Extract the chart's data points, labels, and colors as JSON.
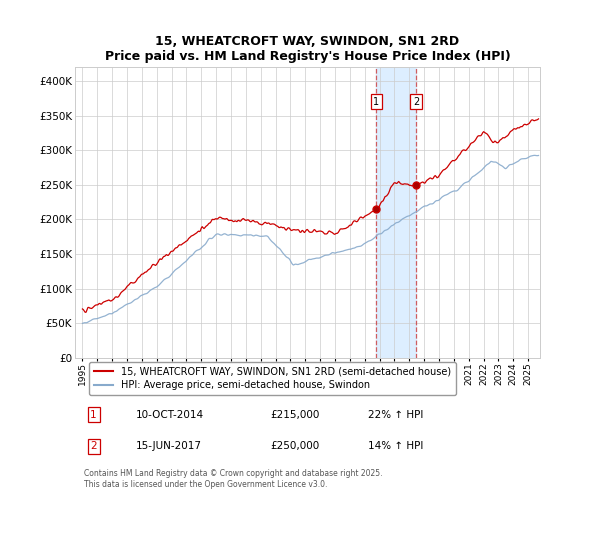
{
  "title": "15, WHEATCROFT WAY, SWINDON, SN1 2RD",
  "subtitle": "Price paid vs. HM Land Registry's House Price Index (HPI)",
  "ytick_values": [
    0,
    50000,
    100000,
    150000,
    200000,
    250000,
    300000,
    350000,
    400000
  ],
  "ylim": [
    0,
    420000
  ],
  "purchase1_date": "10-OCT-2014",
  "purchase1_price": 215000,
  "purchase1_hpi": "22%",
  "purchase1_x": 2014.78,
  "purchase2_date": "15-JUN-2017",
  "purchase2_price": 250000,
  "purchase2_hpi": "14%",
  "purchase2_x": 2017.45,
  "legend_line1": "15, WHEATCROFT WAY, SWINDON, SN1 2RD (semi-detached house)",
  "legend_line2": "HPI: Average price, semi-detached house, Swindon",
  "footer": "Contains HM Land Registry data © Crown copyright and database right 2025.\nThis data is licensed under the Open Government Licence v3.0.",
  "line_color_red": "#cc0000",
  "line_color_blue": "#88aacc",
  "shade_color": "#ddeeff",
  "grid_color": "#cccccc",
  "bg_color": "#ffffff",
  "xlim_start": 1994.5,
  "xlim_end": 2025.8
}
